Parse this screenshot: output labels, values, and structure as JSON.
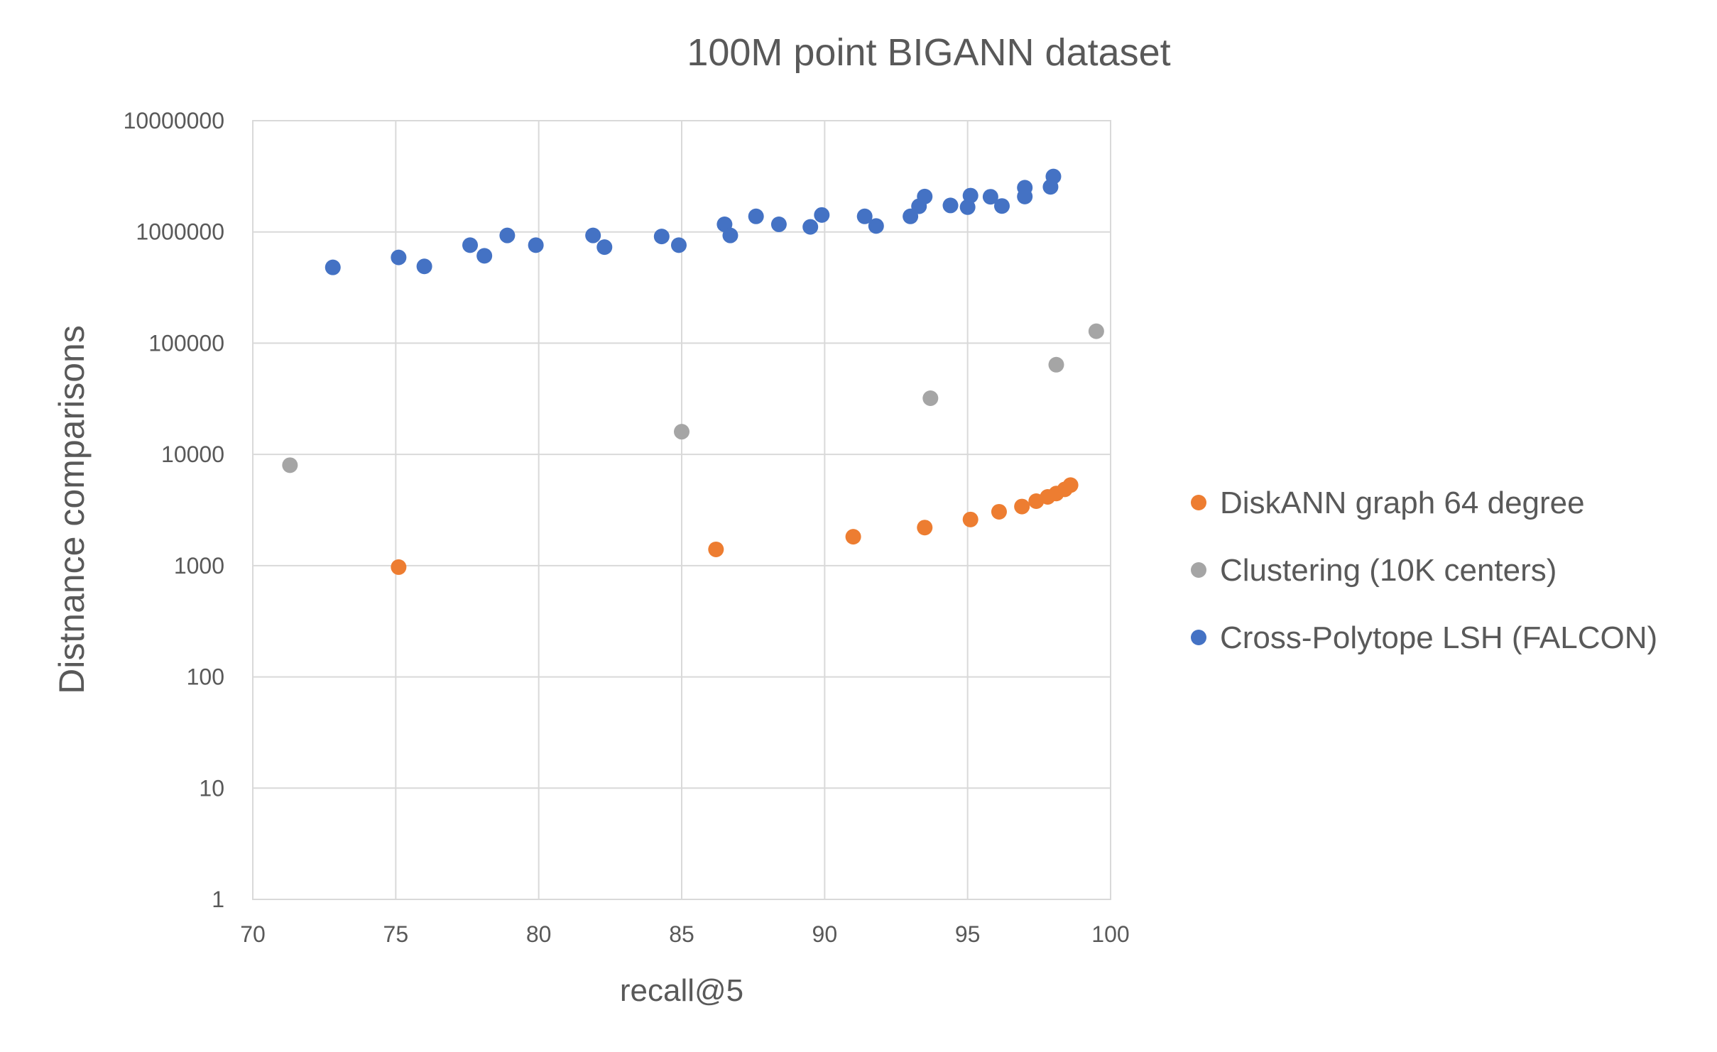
{
  "chart_data": {
    "type": "scatter",
    "title": "100M point BIGANN dataset",
    "xlabel": "recall@5",
    "ylabel": "Distnance comparisons",
    "xlim": [
      70,
      100
    ],
    "ylim": [
      1,
      10000000
    ],
    "yscale": "log",
    "grid": true,
    "legend_position": "right",
    "x_ticks": [
      "70",
      "75",
      "80",
      "85",
      "90",
      "95",
      "100"
    ],
    "y_ticks": [
      "1",
      "10",
      "100",
      "1000",
      "10000",
      "100000",
      "1000000",
      "10000000"
    ],
    "series": [
      {
        "name": "DiskANN graph 64 degree",
        "color": "#ED7D31",
        "points": [
          {
            "x": 75.1,
            "y": 970
          },
          {
            "x": 86.2,
            "y": 1400
          },
          {
            "x": 91.0,
            "y": 1820
          },
          {
            "x": 93.5,
            "y": 2200
          },
          {
            "x": 95.1,
            "y": 2600
          },
          {
            "x": 96.1,
            "y": 3050
          },
          {
            "x": 96.9,
            "y": 3400
          },
          {
            "x": 97.4,
            "y": 3800
          },
          {
            "x": 97.8,
            "y": 4150
          },
          {
            "x": 98.1,
            "y": 4450
          },
          {
            "x": 98.4,
            "y": 4850
          },
          {
            "x": 98.6,
            "y": 5300
          }
        ]
      },
      {
        "name": "Clustering (10K centers)",
        "color": "#A5A5A5",
        "points": [
          {
            "x": 71.3,
            "y": 8000
          },
          {
            "x": 85.0,
            "y": 16000
          },
          {
            "x": 93.7,
            "y": 32000
          },
          {
            "x": 98.1,
            "y": 64000
          },
          {
            "x": 99.5,
            "y": 128000
          }
        ]
      },
      {
        "name": "Cross-Polytope LSH (FALCON)",
        "color": "#4472C4",
        "points": [
          {
            "x": 72.8,
            "y": 480000
          },
          {
            "x": 75.1,
            "y": 590000
          },
          {
            "x": 76.0,
            "y": 490000
          },
          {
            "x": 77.6,
            "y": 760000
          },
          {
            "x": 78.1,
            "y": 610000
          },
          {
            "x": 78.9,
            "y": 930000
          },
          {
            "x": 79.9,
            "y": 760000
          },
          {
            "x": 81.9,
            "y": 930000
          },
          {
            "x": 82.3,
            "y": 730000
          },
          {
            "x": 84.3,
            "y": 910000
          },
          {
            "x": 84.9,
            "y": 760000
          },
          {
            "x": 86.5,
            "y": 1170000
          },
          {
            "x": 86.7,
            "y": 930000
          },
          {
            "x": 87.6,
            "y": 1380000
          },
          {
            "x": 88.4,
            "y": 1170000
          },
          {
            "x": 89.5,
            "y": 1110000
          },
          {
            "x": 89.9,
            "y": 1420000
          },
          {
            "x": 91.4,
            "y": 1380000
          },
          {
            "x": 91.8,
            "y": 1130000
          },
          {
            "x": 93.0,
            "y": 1380000
          },
          {
            "x": 93.3,
            "y": 1700000
          },
          {
            "x": 93.5,
            "y": 2080000
          },
          {
            "x": 94.4,
            "y": 1730000
          },
          {
            "x": 95.0,
            "y": 1670000
          },
          {
            "x": 95.1,
            "y": 2120000
          },
          {
            "x": 95.8,
            "y": 2070000
          },
          {
            "x": 96.2,
            "y": 1710000
          },
          {
            "x": 97.0,
            "y": 2080000
          },
          {
            "x": 97.0,
            "y": 2500000
          },
          {
            "x": 97.9,
            "y": 2540000
          },
          {
            "x": 98.0,
            "y": 3150000
          }
        ]
      }
    ],
    "legend_order": [
      0,
      1,
      2
    ]
  }
}
